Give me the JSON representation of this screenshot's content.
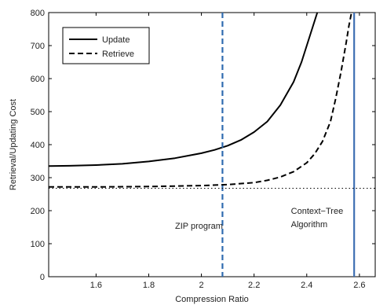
{
  "chart_data": {
    "type": "line",
    "xlabel": "Compression Ratio",
    "ylabel": "Retrieval/Updating Cost",
    "xlim": [
      1.42,
      2.66
    ],
    "ylim": [
      0,
      800
    ],
    "xticks": [
      1.6,
      1.8,
      2.0,
      2.2,
      2.4,
      2.6
    ],
    "xtick_labels": [
      "1.6",
      "1.8",
      "2",
      "2.2",
      "2.4",
      "2.6"
    ],
    "yticks": [
      0,
      100,
      200,
      300,
      400,
      500,
      600,
      700,
      800
    ],
    "ytick_labels": [
      "0",
      "100",
      "200",
      "300",
      "400",
      "500",
      "600",
      "700",
      "800"
    ],
    "grid": false,
    "legend_position": "top-left",
    "series": [
      {
        "name": "Update",
        "style": "solid",
        "color": "#000000",
        "x": [
          1.42,
          1.5,
          1.6,
          1.7,
          1.8,
          1.9,
          2.0,
          2.05,
          2.1,
          2.15,
          2.2,
          2.25,
          2.3,
          2.35,
          2.38,
          2.4,
          2.42,
          2.44
        ],
        "y": [
          335,
          336,
          338,
          342,
          349,
          359,
          374,
          384,
          397,
          414,
          438,
          470,
          520,
          590,
          650,
          700,
          750,
          800
        ]
      },
      {
        "name": "Retrieve",
        "style": "dashed",
        "color": "#000000",
        "x": [
          1.42,
          1.6,
          1.8,
          2.0,
          2.1,
          2.2,
          2.25,
          2.3,
          2.35,
          2.4,
          2.43,
          2.46,
          2.49,
          2.51,
          2.53,
          2.55,
          2.56,
          2.57
        ],
        "y": [
          272,
          272,
          273,
          276,
          279,
          285,
          292,
          302,
          318,
          345,
          372,
          410,
          470,
          540,
          620,
          710,
          760,
          800
        ]
      }
    ],
    "reference_lines": [
      {
        "orientation": "vertical",
        "x": 2.08,
        "style": "dashed",
        "color": "#2f6bb0"
      },
      {
        "orientation": "vertical",
        "x": 2.58,
        "style": "solid",
        "color": "#3f6fb3"
      },
      {
        "orientation": "horizontal",
        "y": 268,
        "style": "dotted",
        "color": "#000000"
      }
    ],
    "annotations": [
      {
        "text": "ZIP program",
        "x": 1.9,
        "y": 145
      },
      {
        "text": "Context−Tree",
        "x": 2.34,
        "y": 190
      },
      {
        "text": "Algorithm",
        "x": 2.34,
        "y": 150
      }
    ]
  }
}
